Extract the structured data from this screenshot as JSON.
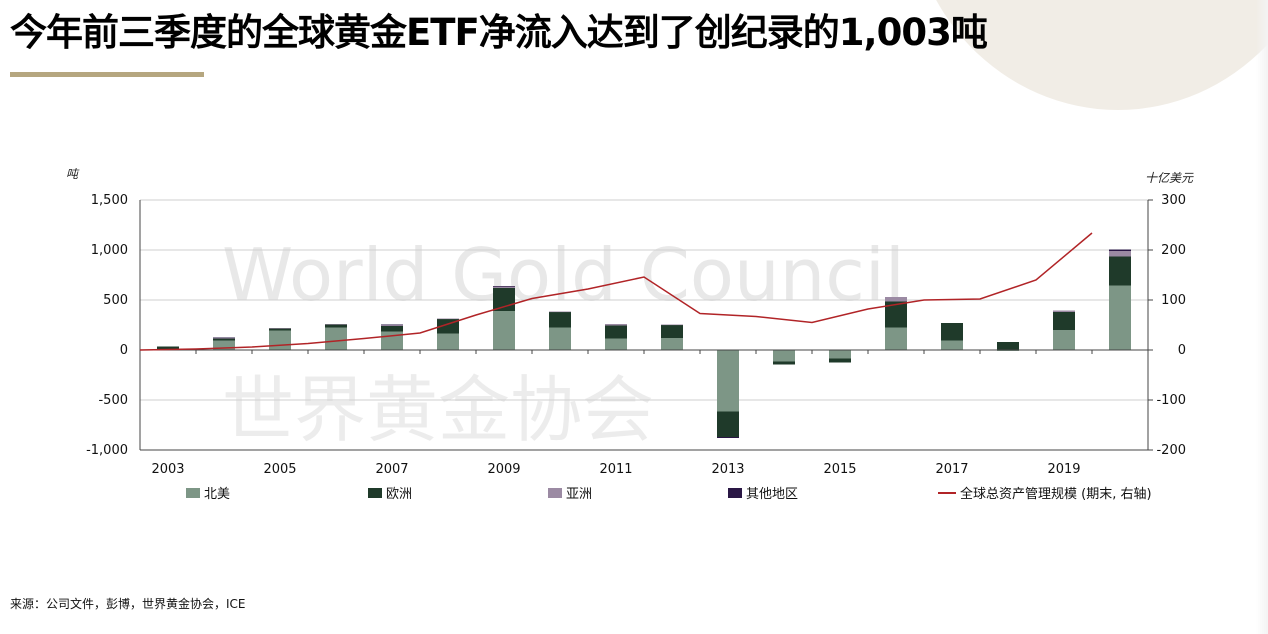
{
  "page": {
    "title": "今年前三季度的全球黄金ETF净流入达到了创纪录的1,003吨",
    "source": "来源：公司文件，彭博，世界黄金协会，ICE",
    "watermark_en": "World Gold Council",
    "watermark_zh": "世界黄金协会"
  },
  "chart_data": {
    "type": "bar",
    "stacked": true,
    "left_unit": "吨",
    "right_unit": "十亿美元",
    "categories": [
      "2003",
      "2004",
      "2005",
      "2006",
      "2007",
      "2008",
      "2009",
      "2010",
      "2011",
      "2012",
      "2013",
      "2014",
      "2015",
      "2016",
      "2017",
      "2018",
      "2019",
      "2020"
    ],
    "x_tick_labels": [
      "2003",
      "2005",
      "2007",
      "2009",
      "2011",
      "2013",
      "2015",
      "2017",
      "2019"
    ],
    "ylim_left": [
      -1000,
      1500
    ],
    "y_ticks_left": [
      "-1,000",
      "-500",
      "0",
      "500",
      "1,000",
      "1,500"
    ],
    "y_tick_values_left": [
      -1000,
      -500,
      0,
      500,
      1000,
      1500
    ],
    "ylim_right": [
      -200,
      300
    ],
    "y_ticks_right": [
      "-200",
      "-100",
      "0",
      "100",
      "200",
      "300"
    ],
    "y_tick_values_right": [
      -200,
      -100,
      0,
      100,
      200,
      300
    ],
    "series": [
      {
        "name": "北美",
        "color": "#7d9686",
        "values": [
          10,
          95,
          195,
          225,
          185,
          165,
          390,
          225,
          115,
          120,
          -615,
          -115,
          -85,
          225,
          95,
          -10,
          200,
          645
        ]
      },
      {
        "name": "欧洲",
        "color": "#1f3a2a",
        "values": [
          25,
          20,
          20,
          30,
          55,
          145,
          230,
          155,
          130,
          130,
          -255,
          -30,
          -40,
          260,
          175,
          80,
          180,
          290
        ]
      },
      {
        "name": "亚洲",
        "color": "#9b8aa3",
        "values": [
          0,
          5,
          5,
          5,
          10,
          5,
          15,
          5,
          15,
          5,
          0,
          0,
          5,
          45,
          0,
          0,
          15,
          55
        ]
      },
      {
        "name": "其他地区",
        "color": "#2a1745",
        "values": [
          0,
          5,
          0,
          0,
          5,
          0,
          5,
          0,
          0,
          0,
          -10,
          0,
          0,
          0,
          0,
          0,
          0,
          15
        ]
      }
    ],
    "line_series": {
      "name": "全球总资产管理规模 (期末, 右轴)",
      "color": "#b12427",
      "axis": "right",
      "values": [
        0,
        2,
        6,
        13,
        23,
        34,
        70,
        103,
        122,
        146,
        73,
        67,
        55,
        82,
        100,
        102,
        140,
        234
      ]
    },
    "legend": [
      "北美",
      "欧洲",
      "亚洲",
      "其他地区",
      "全球总资产管理规模 (期末, 右轴)"
    ],
    "legend_position": "bottom",
    "grid": true
  }
}
